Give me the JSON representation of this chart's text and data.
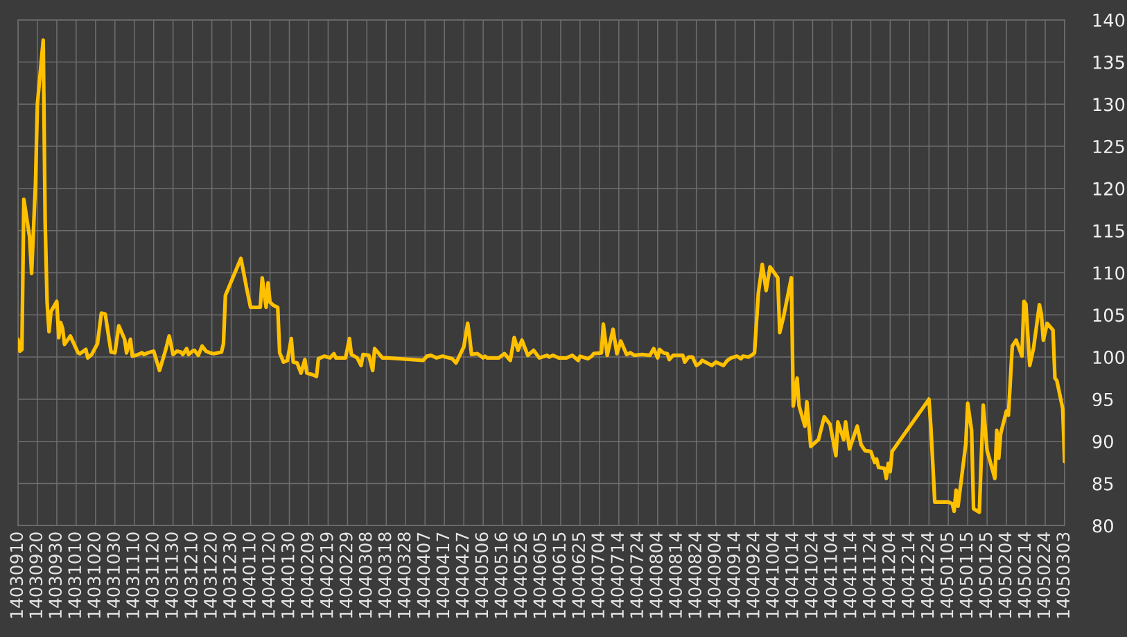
{
  "chart_data": {
    "type": "line",
    "color": "#ffc000",
    "line_style": "solid",
    "grid": true,
    "categories": [
      "14030910",
      null,
      null,
      null,
      null,
      null,
      null,
      null,
      null,
      null,
      "14030920",
      null,
      null,
      null,
      null,
      null,
      null,
      null,
      null,
      null,
      "14030930",
      null,
      null,
      null,
      null,
      null,
      null,
      null,
      null,
      null,
      "14031010",
      null,
      null,
      null,
      null,
      null,
      null,
      null,
      null,
      null,
      "14031020",
      null,
      null,
      null,
      null,
      null,
      null,
      null,
      null,
      null,
      "14031030",
      null,
      null,
      null,
      null,
      null,
      null,
      null,
      null,
      null,
      "14031110",
      null,
      null,
      null,
      null,
      null,
      null,
      null,
      null,
      null,
      "14031120",
      null,
      null,
      null,
      null,
      null,
      null,
      null,
      null,
      null,
      "14031130",
      null,
      null,
      null,
      null,
      null,
      null,
      null,
      null,
      null,
      "14031210",
      null,
      null,
      null,
      null,
      null,
      null,
      null,
      null,
      null,
      "14031220",
      null,
      null,
      null,
      null,
      null,
      null,
      null,
      null,
      null,
      "14031230",
      null,
      null,
      null,
      null,
      null,
      null,
      null,
      null,
      null,
      "14040110",
      null,
      null,
      null,
      null,
      null,
      null,
      null,
      null,
      null,
      "14040120",
      null,
      null,
      null,
      null,
      null,
      null,
      null,
      null,
      null,
      "14040130",
      null,
      null,
      null,
      null,
      null,
      null,
      null,
      null,
      null,
      "14040209",
      null,
      null,
      null,
      null,
      null,
      null,
      null,
      null,
      null,
      "14040219",
      null,
      null,
      null,
      null,
      null,
      null,
      null,
      null,
      null,
      "14040229",
      null,
      null,
      null,
      null,
      null,
      null,
      null,
      null,
      null,
      "14040308",
      null,
      null,
      null,
      null,
      null,
      null,
      null,
      null,
      null,
      "14040318",
      null,
      null,
      null,
      null,
      null,
      null,
      null,
      null,
      null,
      "14040328",
      null,
      null,
      null,
      null,
      null,
      null,
      null,
      null,
      null,
      "14040407",
      null,
      null,
      null,
      null,
      null,
      null,
      null,
      null,
      null,
      "14040417",
      null,
      null,
      null,
      null,
      null,
      null,
      null,
      null,
      null,
      "14040427",
      null,
      null,
      null,
      null,
      null,
      null,
      null,
      null,
      null,
      "14040506",
      null,
      null,
      null,
      null,
      null,
      null,
      null,
      null,
      null,
      "14040516",
      null,
      null,
      null,
      null,
      null,
      null,
      null,
      null,
      null,
      "14040526",
      null,
      null,
      null,
      null,
      null,
      null,
      null,
      null,
      null,
      "14040605",
      null,
      null,
      null,
      null,
      null,
      null,
      null,
      null,
      null,
      "14040615",
      null,
      null,
      null,
      null,
      null,
      null,
      null,
      null,
      null,
      "14040625",
      null,
      null,
      null,
      null,
      null,
      null,
      null,
      null,
      null,
      "14040704",
      null,
      null,
      null,
      null,
      null,
      null,
      null,
      null,
      null,
      "14040714",
      null,
      null,
      null,
      null,
      null,
      null,
      null,
      null,
      null,
      "14040724",
      null,
      null,
      null,
      null,
      null,
      null,
      null,
      null,
      null,
      "14040804",
      null,
      null,
      null,
      null,
      null,
      null,
      null,
      null,
      null,
      "14040814",
      null,
      null,
      null,
      null,
      null,
      null,
      null,
      null,
      null,
      "14040824",
      null,
      null,
      null,
      null,
      null,
      null,
      null,
      null,
      null,
      "14040904",
      null,
      null,
      null,
      null,
      null,
      null,
      null,
      null,
      null,
      "14040914",
      null,
      null,
      null,
      null,
      null,
      null,
      null,
      null,
      null,
      "14040924",
      null,
      null,
      null,
      null,
      null,
      null,
      null,
      null,
      null,
      "14041004",
      null,
      null,
      null,
      null,
      null,
      null,
      null,
      null,
      null,
      "14041014",
      null,
      null,
      null,
      null,
      null,
      null,
      null,
      null,
      null,
      "14041024",
      null,
      null,
      null,
      null,
      null,
      null,
      null,
      null,
      null,
      "14041104",
      null,
      null,
      null,
      null,
      null,
      null,
      null,
      null,
      null,
      "14041114",
      null,
      null,
      null,
      null,
      null,
      null,
      null,
      null,
      null,
      "14041124",
      null,
      null,
      null,
      null,
      null,
      null,
      null,
      null,
      null,
      "14041204",
      null,
      null,
      null,
      null,
      null,
      null,
      null,
      null,
      null,
      "14041214",
      null,
      null,
      null,
      null,
      null,
      null,
      null,
      null,
      null,
      "14041224",
      null,
      null,
      null,
      null,
      null,
      null,
      null,
      null,
      null,
      "14050105",
      null,
      null,
      null,
      null,
      null,
      null,
      null,
      null,
      null,
      "14050115",
      null,
      null,
      null,
      null,
      null,
      null,
      null,
      null,
      null,
      "14050125",
      null,
      null,
      null,
      null,
      null,
      null,
      null,
      null,
      null,
      "14050204",
      null,
      null,
      null,
      null,
      null,
      null,
      null,
      null,
      null,
      "14050214",
      null,
      null,
      null,
      null,
      null,
      null,
      null,
      null,
      null,
      "14050224",
      null,
      null,
      null,
      null,
      null,
      null,
      null,
      null,
      null,
      "14050303"
    ],
    "values": [
      102.1,
      100.7,
      100.9,
      118.7,
      null,
      null,
      114.2,
      109.9,
      null,
      120.5,
      130.0,
      null,
      null,
      137.6,
      116.0,
      106.5,
      103.0,
      105.4,
      null,
      null,
      106.6,
      102.3,
      104.1,
      103.4,
      101.5,
      null,
      null,
      102.5,
      null,
      101.5,
      null,
      100.5,
      100.4,
      null,
      null,
      100.9,
      99.9,
      null,
      100.3,
      null,
      null,
      101.6,
      null,
      105.2,
      null,
      105.1,
      null,
      null,
      100.6,
      null,
      100.5,
      null,
      103.7,
      null,
      null,
      102.1,
      100.5,
      null,
      102.1,
      100.1,
      null,
      null,
      100.3,
      null,
      100.5,
      100.3,
      null,
      100.5,
      null,
      null,
      100.7,
      null,
      null,
      98.4,
      null,
      null,
      100.7,
      null,
      102.5,
      null,
      100.3,
      null,
      100.7,
      null,
      100.6,
      100.3,
      null,
      101.0,
      100.3,
      null,
      100.7,
      100.8,
      null,
      100.2,
      null,
      101.3,
      null,
      100.7,
      null,
      100.5,
      null,
      100.4,
      null,
      null,
      null,
      100.6,
      101.6,
      107.3,
      null,
      null,
      null,
      null,
      null,
      null,
      null,
      111.7,
      null,
      null,
      108.1,
      null,
      105.9,
      null,
      null,
      null,
      null,
      105.9,
      109.4,
      null,
      105.9,
      108.8,
      106.5,
      null,
      106.1,
      null,
      105.9,
      100.5,
      null,
      99.4,
      null,
      99.6,
      null,
      102.2,
      99.4,
      null,
      99.3,
      null,
      98.1,
      null,
      99.7,
      98.1,
      null,
      null,
      97.9,
      null,
      97.7,
      99.8,
      null,
      null,
      100.1,
      null,
      null,
      99.9,
      null,
      100.4,
      99.9,
      null,
      null,
      null,
      null,
      99.9,
      null,
      102.2,
      100.3,
      null,
      null,
      99.9,
      null,
      99.0,
      100.3,
      null,
      null,
      100.2,
      null,
      98.4,
      101.0,
      null,
      null,
      null,
      99.9,
      null,
      null,
      99.9,
      null,
      null,
      null,
      null,
      null,
      null,
      null,
      null,
      null,
      null,
      null,
      null,
      null,
      null,
      null,
      null,
      null,
      99.6,
      null,
      100.1,
      null,
      100.2,
      null,
      null,
      99.9,
      null,
      null,
      100.1,
      null,
      null,
      null,
      null,
      99.8,
      null,
      99.3,
      null,
      null,
      null,
      101.2,
      null,
      104.0,
      102.4,
      100.3,
      null,
      null,
      100.4,
      null,
      null,
      99.9,
      100.1,
      99.9,
      null,
      null,
      null,
      null,
      null,
      99.9,
      null,
      null,
      100.4,
      null,
      null,
      99.6,
      null,
      102.3,
      null,
      100.8,
      null,
      102.0,
      null,
      null,
      100.2,
      null,
      null,
      100.8,
      null,
      null,
      99.9,
      null,
      null,
      null,
      100.2,
      100.0,
      null,
      100.2,
      null,
      null,
      99.9,
      null,
      null,
      null,
      99.9,
      null,
      null,
      100.2,
      null,
      null,
      99.6,
      100.1,
      null,
      null,
      null,
      99.8,
      null,
      100.1,
      100.4,
      null,
      null,
      null,
      100.5,
      103.9,
      null,
      100.2,
      null,
      null,
      103.3,
      null,
      100.4,
      null,
      101.9,
      null,
      null,
      100.3,
      null,
      100.5,
      null,
      100.2,
      null,
      null,
      null,
      100.3,
      null,
      null,
      null,
      100.2,
      null,
      101.0,
      null,
      99.9,
      100.9,
      null,
      100.5,
      null,
      100.4,
      99.7,
      null,
      100.2,
      null,
      null,
      null,
      null,
      100.2,
      99.4,
      null,
      100.0,
      null,
      100.0,
      null,
      99.0,
      null,
      99.3,
      99.6,
      null,
      null,
      null,
      null,
      99.0,
      null,
      99.4,
      null,
      null,
      null,
      99.0,
      null,
      99.6,
      null,
      99.9,
      null,
      null,
      100.1,
      null,
      99.8,
      100.1,
      null,
      null,
      100.0,
      null,
      100.3,
      100.5,
      null,
      107.6,
      null,
      111.0,
      null,
      107.9,
      null,
      110.7,
      null,
      null,
      null,
      109.4,
      102.9,
      null,
      104.8,
      null,
      null,
      null,
      109.4,
      94.2,
      null,
      97.5,
      94.2,
      null,
      null,
      91.8,
      94.7,
      null,
      89.4,
      null,
      null,
      null,
      90.2,
      null,
      null,
      92.9,
      null,
      null,
      92.0,
      null,
      null,
      88.3,
      92.3,
      null,
      null,
      90.2,
      92.3,
      null,
      89.1,
      null,
      null,
      null,
      91.8,
      null,
      89.6,
      null,
      88.9,
      null,
      null,
      88.8,
      null,
      87.5,
      87.9,
      86.9,
      null,
      null,
      86.8,
      85.6,
      87.4,
      86.4,
      88.8,
      null,
      null,
      null,
      null,
      null,
      null,
      null,
      null,
      null,
      null,
      null,
      null,
      null,
      null,
      null,
      null,
      null,
      null,
      95.0,
      91.7,
      null,
      82.8,
      null,
      null,
      null,
      null,
      null,
      null,
      82.8,
      null,
      82.6,
      81.7,
      84.2,
      82.3,
      null,
      null,
      null,
      89.7,
      94.5,
      null,
      91.3,
      82.0,
      null,
      null,
      81.6,
      null,
      94.3,
      null,
      88.9,
      null,
      null,
      null,
      85.6,
      91.3,
      88.0,
      90.9,
      null,
      null,
      93.6,
      93.1,
      null,
      101.3,
      null,
      102.0,
      null,
      null,
      100.1,
      106.6,
      106.3,
      null,
      99.0,
      null,
      101.1,
      null,
      null,
      106.2,
      105.1,
      102.0,
      null,
      104.0,
      null,
      null,
      103.2,
      97.5,
      97.2,
      null,
      null,
      93.9,
      87.6
    ],
    "ylim": [
      80,
      140
    ],
    "yticks": [
      80,
      85,
      90,
      95,
      100,
      105,
      110,
      115,
      120,
      125,
      130,
      135,
      140
    ]
  }
}
